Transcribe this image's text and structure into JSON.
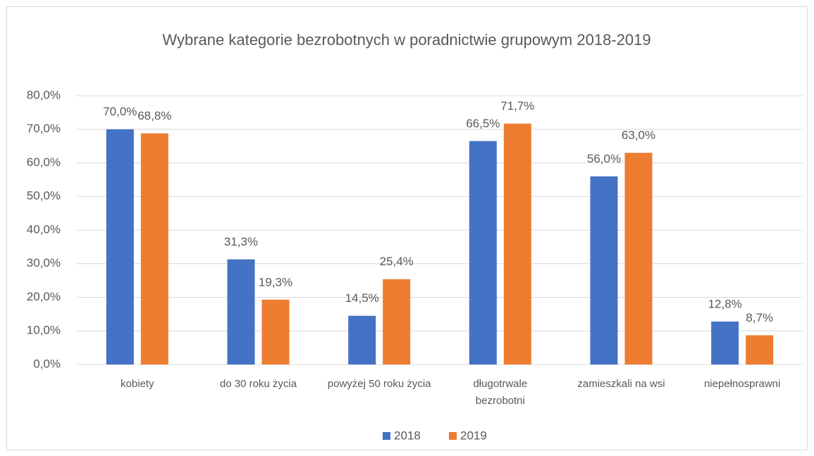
{
  "chart_data": {
    "type": "bar",
    "title": "Wybrane kategorie bezrobotnych w poradnictwie grupowym 2018-2019",
    "categories": [
      "kobiety",
      "do 30 roku życia",
      "powyżej 50 roku życia",
      "długotrwale bezrobotni",
      "zamieszkali na wsi",
      "niepełnosprawni"
    ],
    "series": [
      {
        "name": "2018",
        "color": "#4472c4",
        "values": [
          70.0,
          31.3,
          14.5,
          66.5,
          56.0,
          12.8
        ],
        "value_labels": [
          "70,0%",
          "31,3%",
          "14,5%",
          "66,5%",
          "56,0%",
          "12,8%"
        ]
      },
      {
        "name": "2019",
        "color": "#ed7d31",
        "values": [
          68.8,
          19.3,
          25.4,
          71.7,
          63.0,
          8.7
        ],
        "value_labels": [
          "68,8%",
          "19,3%",
          "25,4%",
          "71,7%",
          "63,0%",
          "8,7%"
        ]
      }
    ],
    "ylim": [
      0,
      80
    ],
    "yticks": [
      {
        "value": 0,
        "label": "0,0%"
      },
      {
        "value": 10,
        "label": "10,0%"
      },
      {
        "value": 20,
        "label": "20,0%"
      },
      {
        "value": 30,
        "label": "30,0%"
      },
      {
        "value": 40,
        "label": "40,0%"
      },
      {
        "value": 50,
        "label": "50,0%"
      },
      {
        "value": 60,
        "label": "60,0%"
      },
      {
        "value": 70,
        "label": "70,0%"
      },
      {
        "value": 80,
        "label": "80,0%"
      }
    ],
    "grid": true,
    "legend": "bottom"
  }
}
